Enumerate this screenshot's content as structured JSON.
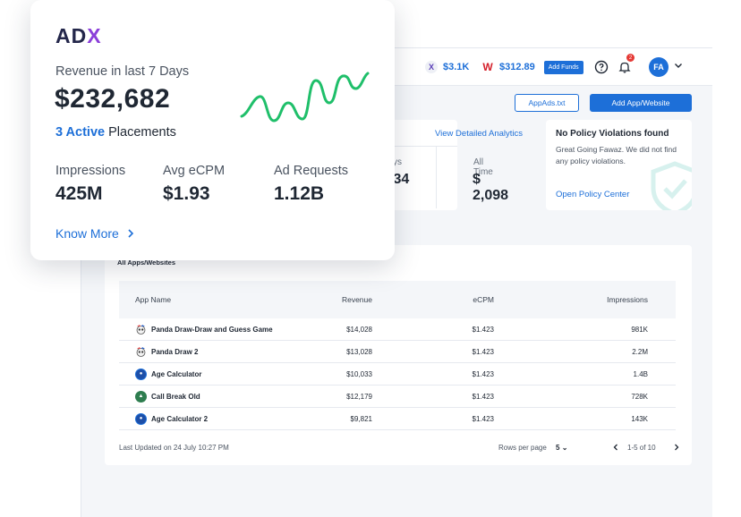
{
  "overlay": {
    "logo_text": "AD",
    "logo_accent": "X",
    "revenue_label": "Revenue in last 7 Days",
    "revenue_value": "$232,682",
    "placements_count": "3 Active",
    "placements_label": "Placements",
    "kpis": [
      {
        "label": "Impressions",
        "value": "425M"
      },
      {
        "label": "Avg eCPM",
        "value": "$1.93"
      },
      {
        "label": "Ad Requests",
        "value": "1.12B"
      }
    ],
    "know_more": "Know More",
    "sparkline_color": "#1fbf6a"
  },
  "topbar": {
    "wallet_x_icon": "X",
    "wallet_x_amount": "$3.1K",
    "wallet_w_icon": "W",
    "wallet_w_amount": "$312.89",
    "add_funds": "Add Funds",
    "notification_count": "2",
    "avatar_initials": "FA"
  },
  "actions": {
    "appads": "AppAds.txt",
    "add_app": "Add App/Website"
  },
  "stats": {
    "view_link": "View Detailed Analytics",
    "partial_label": "ys",
    "partial_value": ".34",
    "all_time_label": "All Time",
    "all_time_value": "$ 2,098"
  },
  "policy": {
    "title": "No Policy Violations found",
    "text": "Great Going Fawaz. We did not find any policy violations.",
    "link": "Open Policy Center"
  },
  "table": {
    "title": "All Apps/Websites",
    "headers": {
      "app": "App Name",
      "revenue": "Revenue",
      "ecpm": "eCPM",
      "impressions": "Impressions"
    },
    "rows": [
      {
        "name": "Panda Draw-Draw and Guess Game",
        "revenue": "$14,028",
        "ecpm": "$1.423",
        "impressions": "981K",
        "icon": "panda-icon"
      },
      {
        "name": "Panda Draw 2",
        "revenue": "$13,028",
        "ecpm": "$1.423",
        "impressions": "2.2M",
        "icon": "panda-icon"
      },
      {
        "name": "Age Calculator",
        "revenue": "$10,033",
        "ecpm": "$1.423",
        "impressions": "1.4B",
        "icon": "age-calculator-icon"
      },
      {
        "name": "Call Break Old",
        "revenue": "$12,179",
        "ecpm": "$1.423",
        "impressions": "728K",
        "icon": "call-break-icon"
      },
      {
        "name": "Age Calculator 2",
        "revenue": "$9,821",
        "ecpm": "$1.423",
        "impressions": "143K",
        "icon": "age-calculator-icon"
      }
    ],
    "last_updated": "Last Updated on 24 July 10:27 PM",
    "rows_per_page_label": "Rows per page",
    "rows_per_page_value": "5",
    "pagination": "1-5 of 10"
  },
  "colors": {
    "primary": "#1d6fd8",
    "accent": "#8b3fd9",
    "positive": "#1fbf6a"
  }
}
